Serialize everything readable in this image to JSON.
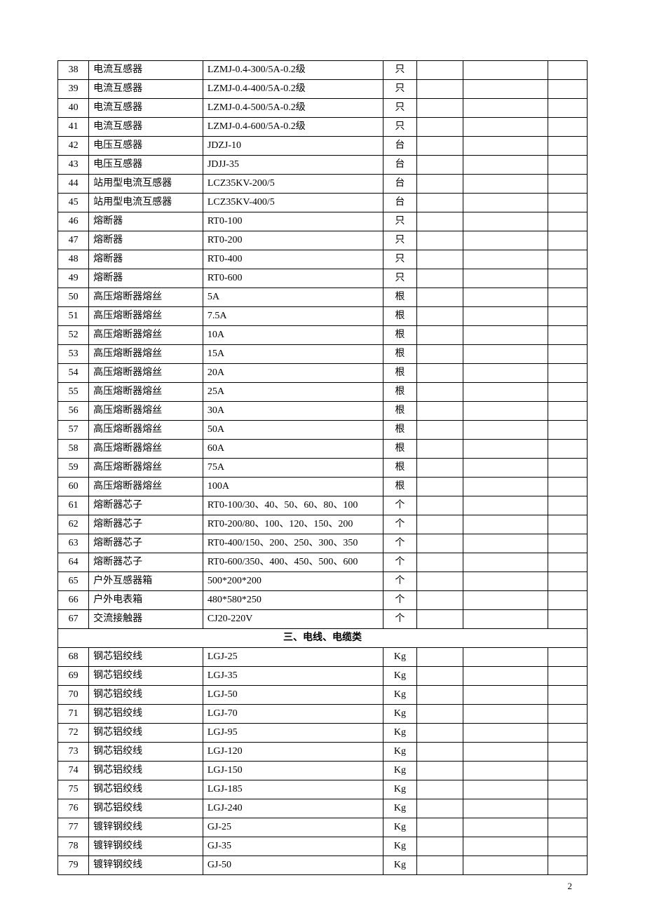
{
  "table": {
    "columns": [
      {
        "key": "idx",
        "class": "col-idx"
      },
      {
        "key": "name",
        "class": "col-name"
      },
      {
        "key": "spec",
        "class": "col-spec"
      },
      {
        "key": "unit",
        "class": "col-unit"
      },
      {
        "key": "e1",
        "class": "col-e1"
      },
      {
        "key": "e2",
        "class": "col-e2"
      },
      {
        "key": "e3",
        "class": "col-e3"
      }
    ],
    "rows": [
      {
        "idx": "38",
        "name": "电流互感器",
        "spec": "LZMJ-0.4-300/5A-0.2级",
        "unit": "只"
      },
      {
        "idx": "39",
        "name": "电流互感器",
        "spec": "LZMJ-0.4-400/5A-0.2级",
        "unit": "只"
      },
      {
        "idx": "40",
        "name": "电流互感器",
        "spec": "LZMJ-0.4-500/5A-0.2级",
        "unit": "只"
      },
      {
        "idx": "41",
        "name": "电流互感器",
        "spec": "LZMJ-0.4-600/5A-0.2级",
        "unit": "只"
      },
      {
        "idx": "42",
        "name": "电压互感器",
        "spec": "JDZJ-10",
        "unit": "台"
      },
      {
        "idx": "43",
        "name": "电压互感器",
        "spec": "JDJJ-35",
        "unit": "台"
      },
      {
        "idx": "44",
        "name": "站用型电流互感器",
        "spec": "LCZ35KV-200/5",
        "unit": "台"
      },
      {
        "idx": "45",
        "name": "站用型电流互感器",
        "spec": "LCZ35KV-400/5",
        "unit": "台"
      },
      {
        "idx": "46",
        "name": "熔断器",
        "spec": "RT0-100",
        "unit": "只"
      },
      {
        "idx": "47",
        "name": "熔断器",
        "spec": "RT0-200",
        "unit": "只"
      },
      {
        "idx": "48",
        "name": "熔断器",
        "spec": "RT0-400",
        "unit": "只"
      },
      {
        "idx": "49",
        "name": "熔断器",
        "spec": "RT0-600",
        "unit": "只"
      },
      {
        "idx": "50",
        "name": "高压熔断器熔丝",
        "spec": "5A",
        "unit": "根"
      },
      {
        "idx": "51",
        "name": "高压熔断器熔丝",
        "spec": "7.5A",
        "unit": "根"
      },
      {
        "idx": "52",
        "name": "高压熔断器熔丝",
        "spec": "10A",
        "unit": "根"
      },
      {
        "idx": "53",
        "name": "高压熔断器熔丝",
        "spec": "15A",
        "unit": "根"
      },
      {
        "idx": "54",
        "name": "高压熔断器熔丝",
        "spec": "20A",
        "unit": "根"
      },
      {
        "idx": "55",
        "name": "高压熔断器熔丝",
        "spec": "25A",
        "unit": "根"
      },
      {
        "idx": "56",
        "name": "高压熔断器熔丝",
        "spec": "30A",
        "unit": "根"
      },
      {
        "idx": "57",
        "name": "高压熔断器熔丝",
        "spec": "50A",
        "unit": "根"
      },
      {
        "idx": "58",
        "name": "高压熔断器熔丝",
        "spec": "60A",
        "unit": "根"
      },
      {
        "idx": "59",
        "name": "高压熔断器熔丝",
        "spec": "75A",
        "unit": "根"
      },
      {
        "idx": "60",
        "name": "高压熔断器熔丝",
        "spec": "100A",
        "unit": "根"
      },
      {
        "idx": "61",
        "name": "熔断器芯子",
        "spec": "RT0-100/30、40、50、60、80、100",
        "unit": "个"
      },
      {
        "idx": "62",
        "name": "熔断器芯子",
        "spec": "RT0-200/80、100、120、150、200",
        "unit": "个"
      },
      {
        "idx": "63",
        "name": "熔断器芯子",
        "spec": "RT0-400/150、200、250、300、350",
        "unit": "个"
      },
      {
        "idx": "64",
        "name": "熔断器芯子",
        "spec": "RT0-600/350、400、450、500、600",
        "unit": "个"
      },
      {
        "idx": "65",
        "name": "户外互感器箱",
        "spec": "500*200*200",
        "unit": "个"
      },
      {
        "idx": "66",
        "name": "户外电表箱",
        "spec": "480*580*250",
        "unit": "个"
      },
      {
        "idx": "67",
        "name": "交流接触器",
        "spec": "CJ20-220V",
        "unit": "个"
      },
      {
        "section": "三、电线、电缆类"
      },
      {
        "idx": "68",
        "name": "钢芯铝绞线",
        "spec": "LGJ-25",
        "unit": "Kg"
      },
      {
        "idx": "69",
        "name": "钢芯铝绞线",
        "spec": "LGJ-35",
        "unit": "Kg"
      },
      {
        "idx": "70",
        "name": "钢芯铝绞线",
        "spec": "LGJ-50",
        "unit": "Kg"
      },
      {
        "idx": "71",
        "name": "钢芯铝绞线",
        "spec": "LGJ-70",
        "unit": "Kg"
      },
      {
        "idx": "72",
        "name": "钢芯铝绞线",
        "spec": "LGJ-95",
        "unit": "Kg"
      },
      {
        "idx": "73",
        "name": "钢芯铝绞线",
        "spec": "LGJ-120",
        "unit": "Kg"
      },
      {
        "idx": "74",
        "name": "钢芯铝绞线",
        "spec": "LGJ-150",
        "unit": "Kg"
      },
      {
        "idx": "75",
        "name": "钢芯铝绞线",
        "spec": "LGJ-185",
        "unit": "Kg"
      },
      {
        "idx": "76",
        "name": "钢芯铝绞线",
        "spec": "LGJ-240",
        "unit": "Kg"
      },
      {
        "idx": "77",
        "name": "镀锌钢绞线",
        "spec": "GJ-25",
        "unit": "Kg"
      },
      {
        "idx": "78",
        "name": "镀锌钢绞线",
        "spec": "GJ-35",
        "unit": "Kg"
      },
      {
        "idx": "79",
        "name": "镀锌钢绞线",
        "spec": "GJ-50",
        "unit": "Kg"
      }
    ]
  },
  "page_number": "2"
}
